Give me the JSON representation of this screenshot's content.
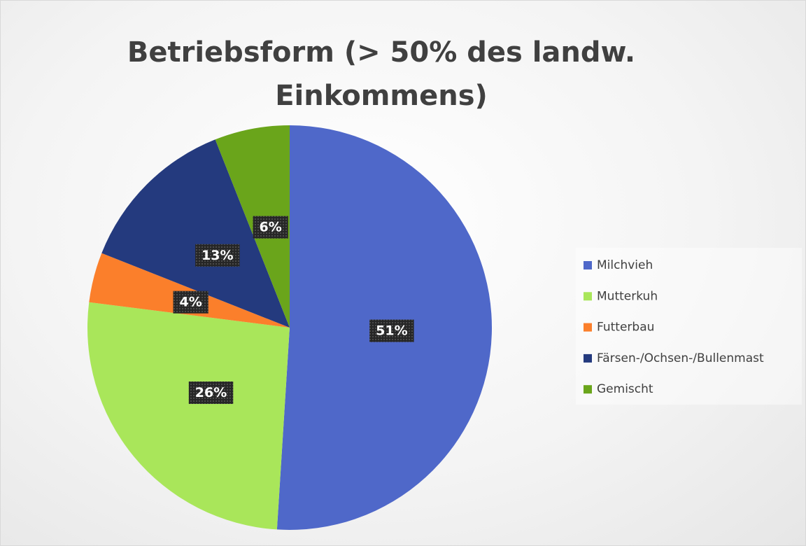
{
  "chart_data": {
    "type": "pie",
    "title": "Betriebsform (> 50% des landw. Einkommens)",
    "categories": [
      "Milchvieh",
      "Mutterkuh",
      "Futterbau",
      "Färsen-/Ochsen-/Bullenmast",
      "Gemischt"
    ],
    "values": [
      51,
      26,
      4,
      13,
      6
    ],
    "value_labels": [
      "51%",
      "26%",
      "4%",
      "13%",
      "6%"
    ],
    "colors": [
      "#4f68c9",
      "#a9e65a",
      "#fb7f2b",
      "#243a7e",
      "#6aa51b"
    ],
    "legend": "right"
  }
}
